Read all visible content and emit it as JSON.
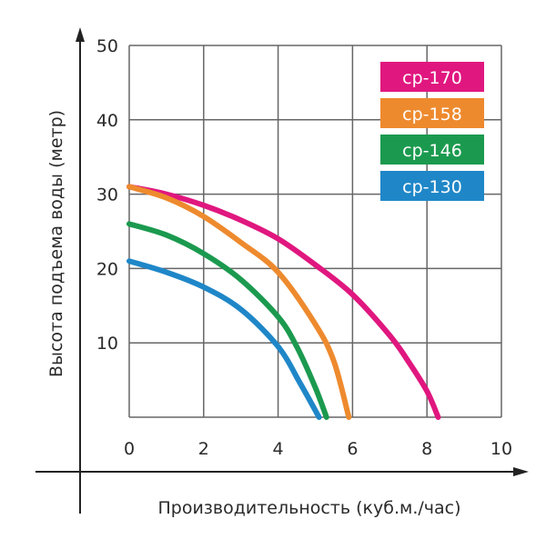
{
  "chart_data": {
    "type": "line",
    "title": "",
    "xlabel": "Производительность (куб.м./час)",
    "ylabel": "Высота подъема воды (метр)",
    "xlim": [
      0,
      10
    ],
    "ylim": [
      0,
      50
    ],
    "xticks": [
      "0",
      "2",
      "4",
      "6",
      "8",
      "10"
    ],
    "yticks": [
      "10",
      "20",
      "30",
      "40",
      "50"
    ],
    "grid": true,
    "legend_position": "top-right",
    "series": [
      {
        "name": "cp-170",
        "color": "#e0177f",
        "x": [
          0,
          1,
          2,
          3,
          4,
          5,
          6,
          7,
          7.5,
          8,
          8.3
        ],
        "y": [
          31,
          30,
          28.5,
          26.5,
          24,
          20.5,
          16.5,
          11,
          7.5,
          3.5,
          0
        ]
      },
      {
        "name": "cp-158",
        "color": "#ee8a2e",
        "x": [
          0,
          1,
          2,
          3,
          4,
          5,
          5.5,
          5.9
        ],
        "y": [
          31,
          29.5,
          27,
          23.5,
          19.5,
          12.5,
          7.5,
          0
        ]
      },
      {
        "name": "cp-146",
        "color": "#1b9a4f",
        "x": [
          0,
          1,
          2,
          3,
          4,
          4.5,
          5,
          5.3
        ],
        "y": [
          26,
          24.5,
          22,
          18.5,
          13.5,
          9.5,
          4,
          0
        ]
      },
      {
        "name": "cp-130",
        "color": "#1f87c8",
        "x": [
          0,
          1,
          2,
          3,
          4,
          4.6,
          5.1
        ],
        "y": [
          21,
          19.5,
          17.5,
          14.5,
          9.5,
          4.5,
          0
        ]
      }
    ]
  }
}
